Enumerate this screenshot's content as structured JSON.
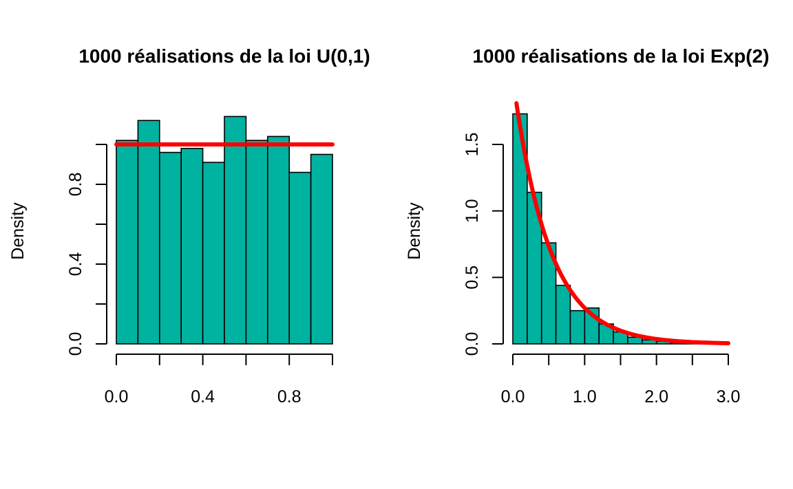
{
  "colors": {
    "bar": "#00b2a0",
    "density": "#ff0000",
    "axis": "#000000"
  },
  "chart_data": [
    {
      "type": "bar",
      "title": "1000 réalisations de la loi U(0,1)",
      "xlabel": "",
      "ylabel": "Density",
      "xlim": [
        0,
        1
      ],
      "ylim": [
        0,
        1.2
      ],
      "x_ticks": [
        0,
        0.2,
        0.4,
        0.6,
        0.8,
        1.0
      ],
      "x_tick_labels": [
        "0.0",
        "",
        "0.4",
        "",
        "0.8",
        ""
      ],
      "y_ticks": [
        0,
        0.2,
        0.4,
        0.6,
        0.8,
        1.0
      ],
      "y_tick_labels": [
        "0.0",
        "",
        "0.4",
        "",
        "0.8",
        ""
      ],
      "bins": [
        {
          "x0": 0.0,
          "x1": 0.1,
          "density": 1.02
        },
        {
          "x0": 0.1,
          "x1": 0.2,
          "density": 1.12
        },
        {
          "x0": 0.2,
          "x1": 0.3,
          "density": 0.96
        },
        {
          "x0": 0.3,
          "x1": 0.4,
          "density": 0.98
        },
        {
          "x0": 0.4,
          "x1": 0.5,
          "density": 0.91
        },
        {
          "x0": 0.5,
          "x1": 0.6,
          "density": 1.14
        },
        {
          "x0": 0.6,
          "x1": 0.7,
          "density": 1.02
        },
        {
          "x0": 0.7,
          "x1": 0.8,
          "density": 1.04
        },
        {
          "x0": 0.8,
          "x1": 0.9,
          "density": 0.86
        },
        {
          "x0": 0.9,
          "x1": 1.0,
          "density": 0.95
        }
      ],
      "curve": {
        "x": [
          0,
          1
        ],
        "y": [
          1,
          1
        ]
      }
    },
    {
      "type": "bar",
      "title": "1000 réalisations de la loi Exp(2)",
      "xlabel": "",
      "ylabel": "Density",
      "xlim": [
        0,
        3
      ],
      "ylim": [
        0,
        1.8
      ],
      "x_ticks": [
        0,
        0.5,
        1.0,
        1.5,
        2.0,
        2.5,
        3.0
      ],
      "x_tick_labels": [
        "0.0",
        "",
        "1.0",
        "",
        "2.0",
        "",
        "3.0"
      ],
      "y_ticks": [
        0,
        0.5,
        1.0,
        1.5
      ],
      "y_tick_labels": [
        "0.0",
        "0.5",
        "1.0",
        "1.5"
      ],
      "bins": [
        {
          "x0": 0.0,
          "x1": 0.2,
          "density": 1.73
        },
        {
          "x0": 0.2,
          "x1": 0.4,
          "density": 1.14
        },
        {
          "x0": 0.4,
          "x1": 0.6,
          "density": 0.76
        },
        {
          "x0": 0.6,
          "x1": 0.8,
          "density": 0.44
        },
        {
          "x0": 0.8,
          "x1": 1.0,
          "density": 0.25
        },
        {
          "x0": 1.0,
          "x1": 1.2,
          "density": 0.27
        },
        {
          "x0": 1.2,
          "x1": 1.4,
          "density": 0.15
        },
        {
          "x0": 1.4,
          "x1": 1.6,
          "density": 0.09
        },
        {
          "x0": 1.6,
          "x1": 1.8,
          "density": 0.05
        },
        {
          "x0": 1.8,
          "x1": 2.0,
          "density": 0.03
        },
        {
          "x0": 2.0,
          "x1": 2.2,
          "density": 0.02
        },
        {
          "x0": 2.2,
          "x1": 2.4,
          "density": 0.01
        },
        {
          "x0": 2.4,
          "x1": 2.6,
          "density": 0.01
        },
        {
          "x0": 2.6,
          "x1": 2.8,
          "density": 0.005
        },
        {
          "x0": 2.8,
          "x1": 3.0,
          "density": 0.005
        }
      ],
      "curve": {
        "type": "exponential-density",
        "rate": 2,
        "x_range": [
          0.05,
          3.0
        ]
      }
    }
  ]
}
